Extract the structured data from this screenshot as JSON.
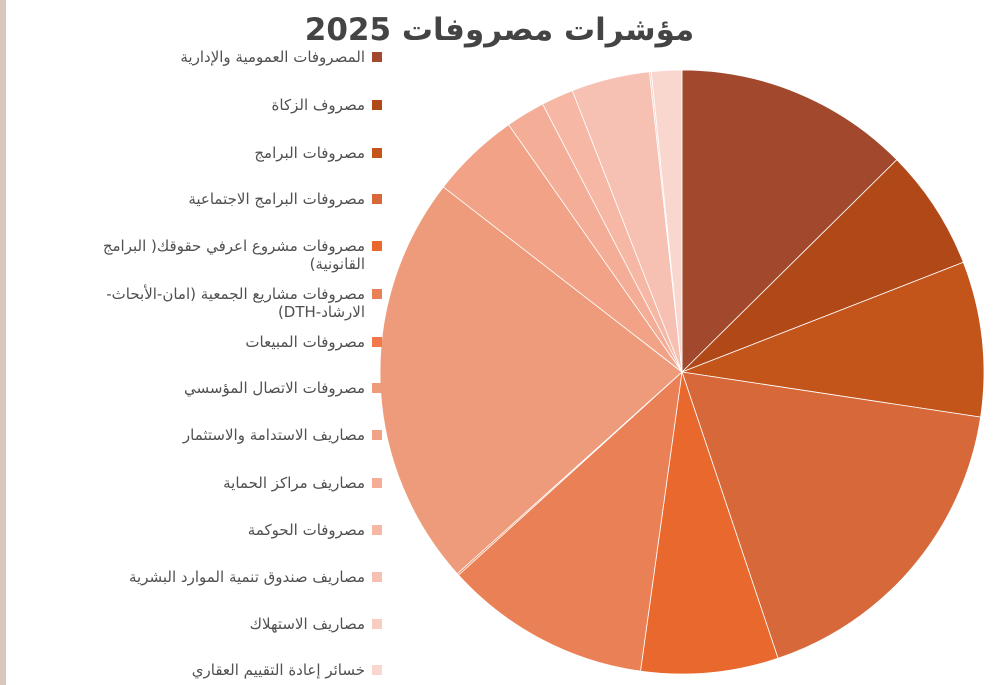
{
  "chart_data": {
    "type": "pie",
    "title": "مؤشرات مصروفات 2025",
    "legend_placement": "left",
    "categories": [
      "المصروفات العمومية والإدارية",
      "مصروف الزكاة",
      "مصروفات البرامج",
      "مصروفات البرامج الاجتماعية",
      "مصروفات مشروع اعرفي حقوقك( البرامج القانونية)",
      "مصروفات مشاريع الجمعية (امان-الأبحاث-الارشاد-DTH)",
      "مصروفات المبيعات",
      "مصروفات الاتصال المؤسسي",
      "مصاريف الاستدامة والاستثمار",
      "مصاريف مراكز الحماية",
      "مصروفات الحوكمة",
      "مصاريف صندوق تنمية الموارد البشرية",
      "مصاريف الاستهلاك",
      "خسائر إعادة التقييم العقاري"
    ],
    "values": [
      13.2,
      6.8,
      8.7,
      18.3,
      7.7,
      11.6,
      0.1,
      23.2,
      5.0,
      2.2,
      1.8,
      4.4,
      0.1,
      1.7
    ],
    "units": "percent",
    "colors": [
      "#a2492d",
      "#b14818",
      "#c3541a",
      "#d7683a",
      "#e8682d",
      "#ea8056",
      "#f2784a",
      "#ee9b7b",
      "#f1a287",
      "#f4ae97",
      "#f6b7a4",
      "#f6c1b2",
      "#f8cdc1",
      "#f9d7cf"
    ]
  }
}
